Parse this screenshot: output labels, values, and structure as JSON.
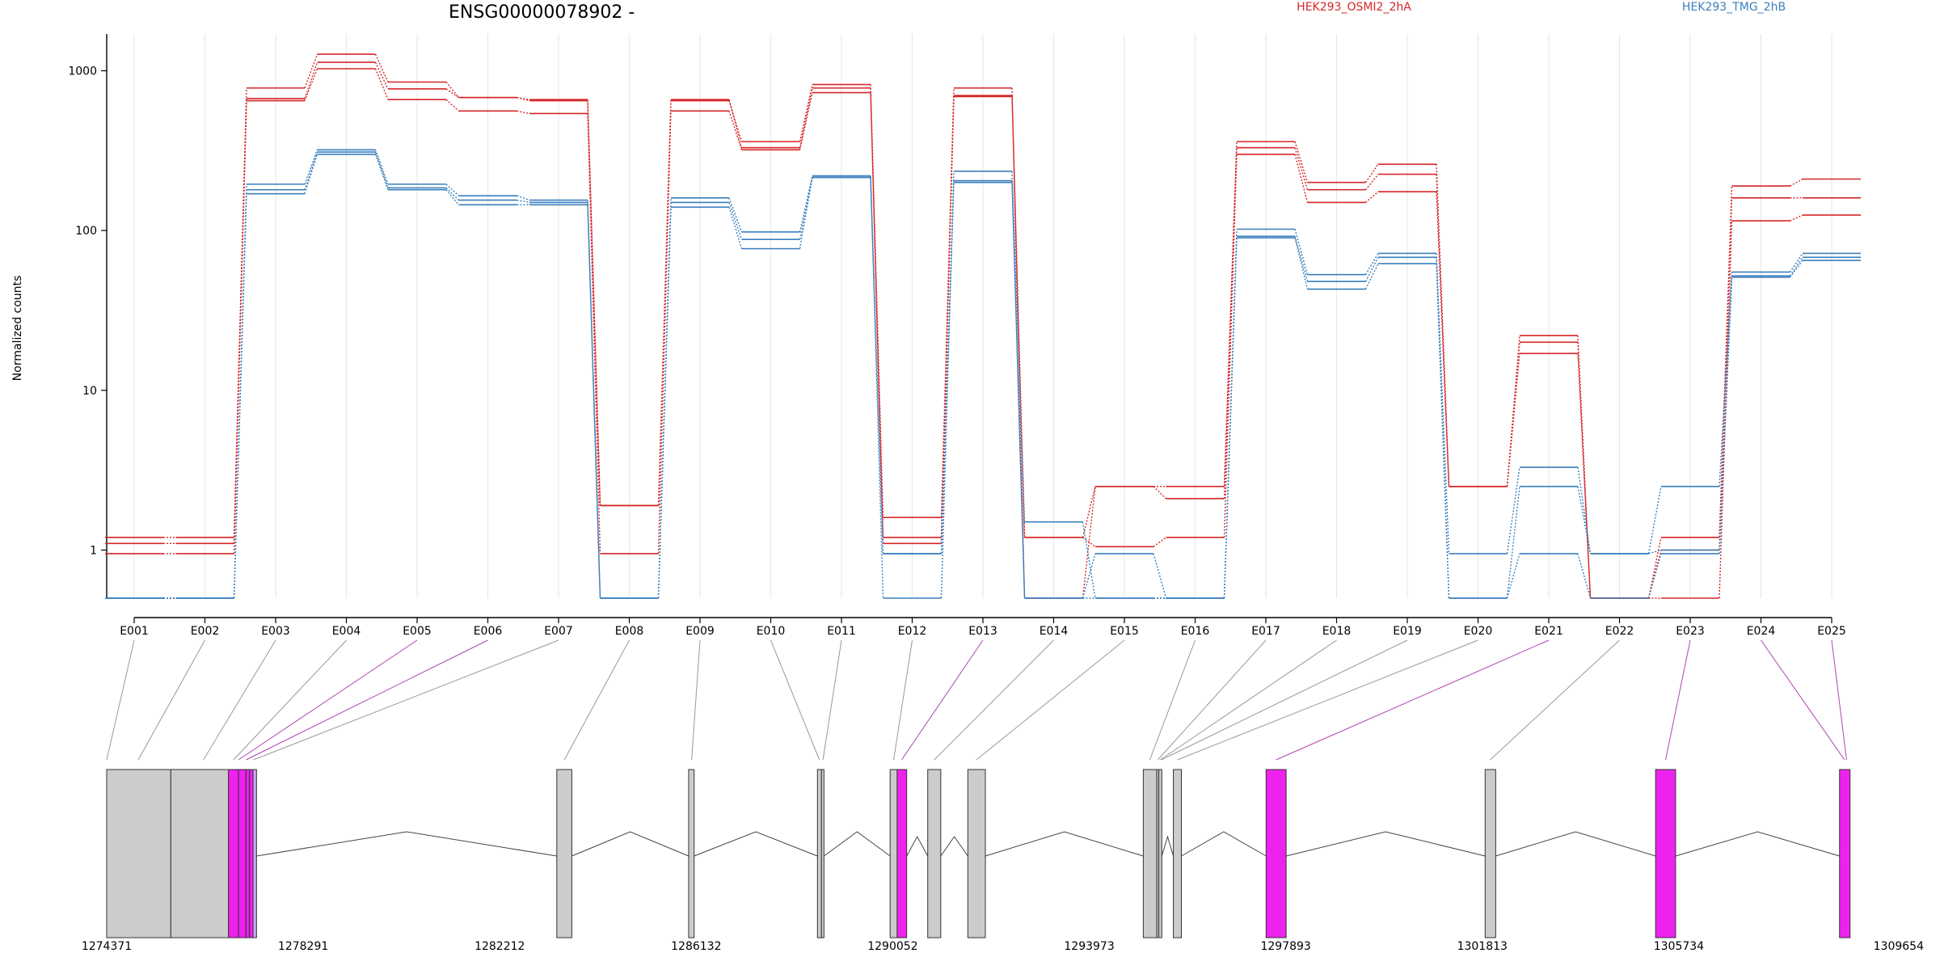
{
  "chart_data": {
    "type": "line",
    "title": "ENSG00000078902 -",
    "ylabel": "Normalized counts",
    "y_scale": "log",
    "ylim": [
      0.5,
      1700
    ],
    "y_ticks": [
      1,
      10,
      100,
      1000
    ],
    "y_tick_labels": [
      "1",
      "10",
      "100",
      "1000"
    ],
    "categories": [
      "E001",
      "E002",
      "E003",
      "E004",
      "E005",
      "E006",
      "E007",
      "E008",
      "E009",
      "E010",
      "E011",
      "E012",
      "E013",
      "E014",
      "E015",
      "E016",
      "E017",
      "E018",
      "E019",
      "E020",
      "E021",
      "E022",
      "E023",
      "E024",
      "E025"
    ],
    "legend": [
      {
        "label": "HEK293_OSMI2_2hA",
        "color": "#d62728"
      },
      {
        "label": "HEK293_TMG_2hB",
        "color": "#3a7fbd"
      }
    ],
    "series": [
      {
        "group": 0,
        "values": [
          1.2,
          1.2,
          780,
          1270,
          850,
          680,
          650,
          1.9,
          650,
          360,
          820,
          1.6,
          780,
          0.5,
          2.5,
          2.5,
          360,
          200,
          260,
          2.5,
          22,
          0.5,
          1.2,
          190,
          210
        ]
      },
      {
        "group": 0,
        "values": [
          1.1,
          1.1,
          670,
          1130,
          770,
          680,
          660,
          1.9,
          660,
          330,
          780,
          1.2,
          690,
          1.2,
          2.5,
          2.1,
          330,
          180,
          225,
          2.5,
          20,
          0.5,
          1.0,
          160,
          160
        ]
      },
      {
        "group": 0,
        "values": [
          0.95,
          0.95,
          650,
          1030,
          660,
          560,
          540,
          0.95,
          560,
          320,
          730,
          1.1,
          700,
          1.2,
          1.05,
          1.2,
          300,
          150,
          175,
          2.5,
          17,
          0.5,
          0.5,
          115,
          125
        ]
      },
      {
        "group": 1,
        "values": [
          0.5,
          0.5,
          195,
          320,
          195,
          165,
          155,
          0.5,
          160,
          98,
          220,
          0.5,
          235,
          1.5,
          0.5,
          0.5,
          102,
          53,
          72,
          0.95,
          3.3,
          0.95,
          2.5,
          55,
          72
        ]
      },
      {
        "group": 1,
        "values": [
          0.5,
          0.5,
          180,
          310,
          185,
          155,
          150,
          0.5,
          150,
          88,
          215,
          0.95,
          205,
          0.5,
          0.95,
          0.5,
          92,
          48,
          68,
          0.5,
          2.5,
          0.95,
          1.0,
          52,
          68
        ]
      },
      {
        "group": 1,
        "values": [
          0.5,
          0.5,
          170,
          300,
          180,
          145,
          145,
          0.5,
          140,
          77,
          215,
          0.95,
          200,
          0.5,
          0.5,
          0.5,
          90,
          43,
          62,
          0.5,
          0.95,
          0.5,
          0.95,
          51,
          65
        ]
      }
    ],
    "genomic_axis": {
      "range": [
        1274371,
        1309654
      ],
      "tick_labels": [
        "1274371",
        "1278291",
        "1282212",
        "1286132",
        "1290052",
        "1293973",
        "1297893",
        "1301813",
        "1305734",
        "1309654"
      ]
    },
    "exons": [
      {
        "start": 1274371,
        "end": 1275650,
        "kind": "gray"
      },
      {
        "start": 1275650,
        "end": 1276800,
        "kind": "gray"
      },
      {
        "start": 1276800,
        "end": 1277000,
        "kind": "magenta"
      },
      {
        "start": 1277000,
        "end": 1277150,
        "kind": "magenta"
      },
      {
        "start": 1277150,
        "end": 1277220,
        "kind": "magenta"
      },
      {
        "start": 1277220,
        "end": 1277290,
        "kind": "magenta"
      },
      {
        "start": 1277290,
        "end": 1277360,
        "kind": "lavender"
      },
      {
        "start": 1283350,
        "end": 1283650,
        "kind": "gray"
      },
      {
        "start": 1285980,
        "end": 1286090,
        "kind": "gray"
      },
      {
        "start": 1288550,
        "end": 1288630,
        "kind": "gray"
      },
      {
        "start": 1288630,
        "end": 1288680,
        "kind": "gray"
      },
      {
        "start": 1290000,
        "end": 1290140,
        "kind": "gray"
      },
      {
        "start": 1290140,
        "end": 1290330,
        "kind": "magenta"
      },
      {
        "start": 1290750,
        "end": 1291010,
        "kind": "gray"
      },
      {
        "start": 1291550,
        "end": 1291900,
        "kind": "gray"
      },
      {
        "start": 1295050,
        "end": 1295320,
        "kind": "gray"
      },
      {
        "start": 1295320,
        "end": 1295360,
        "kind": "gray"
      },
      {
        "start": 1295360,
        "end": 1295420,
        "kind": "gray"
      },
      {
        "start": 1295650,
        "end": 1295810,
        "kind": "gray"
      },
      {
        "start": 1297500,
        "end": 1297900,
        "kind": "magenta"
      },
      {
        "start": 1301870,
        "end": 1302080,
        "kind": "gray"
      },
      {
        "start": 1305270,
        "end": 1305670,
        "kind": "magenta"
      },
      {
        "start": 1308940,
        "end": 1309150,
        "kind": "magenta"
      }
    ],
    "exon_links": [
      {
        "exon": "E001",
        "genomic": 1274371,
        "kind": "gray"
      },
      {
        "exon": "E002",
        "genomic": 1275000,
        "kind": "gray"
      },
      {
        "exon": "E003",
        "genomic": 1276300,
        "kind": "gray"
      },
      {
        "exon": "E004",
        "genomic": 1276900,
        "kind": "gray"
      },
      {
        "exon": "E005",
        "genomic": 1277000,
        "kind": "magenta"
      },
      {
        "exon": "E006",
        "genomic": 1277150,
        "kind": "magenta"
      },
      {
        "exon": "E007",
        "genomic": 1277300,
        "kind": "gray"
      },
      {
        "exon": "E008",
        "genomic": 1283500,
        "kind": "gray"
      },
      {
        "exon": "E009",
        "genomic": 1286040,
        "kind": "gray"
      },
      {
        "exon": "E010",
        "genomic": 1288590,
        "kind": "gray"
      },
      {
        "exon": "E011",
        "genomic": 1288660,
        "kind": "gray"
      },
      {
        "exon": "E012",
        "genomic": 1290070,
        "kind": "gray"
      },
      {
        "exon": "E013",
        "genomic": 1290230,
        "kind": "magenta"
      },
      {
        "exon": "E014",
        "genomic": 1290880,
        "kind": "gray"
      },
      {
        "exon": "E015",
        "genomic": 1291720,
        "kind": "gray"
      },
      {
        "exon": "E016",
        "genomic": 1295180,
        "kind": "gray"
      },
      {
        "exon": "E017",
        "genomic": 1295340,
        "kind": "gray"
      },
      {
        "exon": "E018",
        "genomic": 1295390,
        "kind": "gray"
      },
      {
        "exon": "E019",
        "genomic": 1295410,
        "kind": "gray"
      },
      {
        "exon": "E020",
        "genomic": 1295730,
        "kind": "gray"
      },
      {
        "exon": "E021",
        "genomic": 1297700,
        "kind": "magenta"
      },
      {
        "exon": "E022",
        "genomic": 1301970,
        "kind": "gray"
      },
      {
        "exon": "E023",
        "genomic": 1305470,
        "kind": "magenta"
      },
      {
        "exon": "E024",
        "genomic": 1309040,
        "kind": "magenta"
      },
      {
        "exon": "E025",
        "genomic": 1309080,
        "kind": "magenta"
      }
    ],
    "colors": {
      "gray_exon": "#cccccc",
      "magenta_exon": "#ee22ee",
      "lavender_exon": "#c8a8f0",
      "gray_link": "#999999",
      "magenta_link": "#b040b0"
    },
    "grid": true,
    "legend_position": "top"
  }
}
